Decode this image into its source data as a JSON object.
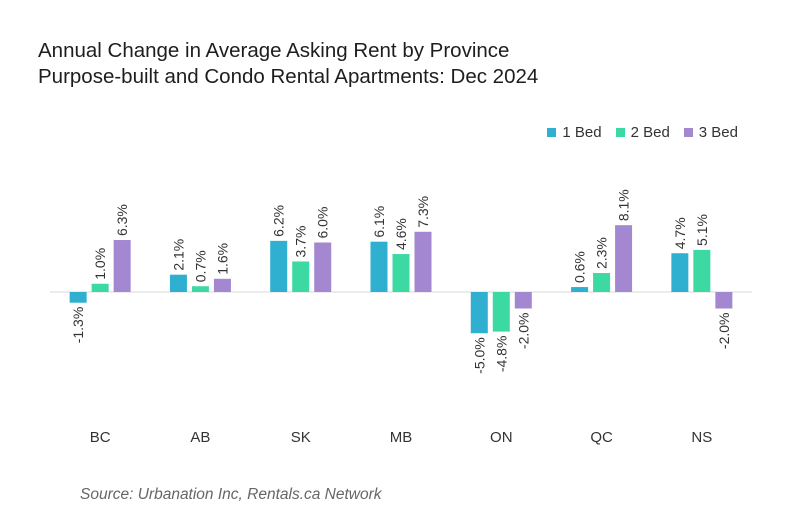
{
  "title_line1": "Annual Change in Average Asking Rent by Province",
  "title_line2": "Purpose-built and Condo Rental Apartments: Dec 2024",
  "source": "Source: Urbanation Inc, Rentals.ca Network",
  "chart_data": {
    "type": "bar",
    "categories": [
      "BC",
      "AB",
      "SK",
      "MB",
      "ON",
      "QC",
      "NS"
    ],
    "series": [
      {
        "name": "1 Bed",
        "color": "#2fb0d0",
        "values": [
          -1.3,
          2.1,
          6.2,
          6.1,
          -5.0,
          0.6,
          4.7
        ],
        "labels": [
          "-1.3%",
          "2.1%",
          "6.2%",
          "6.1%",
          "-5.0%",
          "0.6%",
          "4.7%"
        ]
      },
      {
        "name": "2 Bed",
        "color": "#3dd9a3",
        "values": [
          1.0,
          0.7,
          3.7,
          4.6,
          -4.8,
          2.3,
          5.1
        ],
        "labels": [
          "1.0%",
          "0.7%",
          "3.7%",
          "4.6%",
          "-4.8%",
          "2.3%",
          "5.1%"
        ]
      },
      {
        "name": "3 Bed",
        "color": "#a387d1",
        "values": [
          6.3,
          1.6,
          6.0,
          7.3,
          -2.0,
          8.1,
          -2.0
        ],
        "labels": [
          "6.3%",
          "1.6%",
          "6.0%",
          "7.3%",
          "-2.0%",
          "8.1%",
          "-2.0%"
        ]
      }
    ],
    "grid": false,
    "legend_position": "top-right"
  }
}
